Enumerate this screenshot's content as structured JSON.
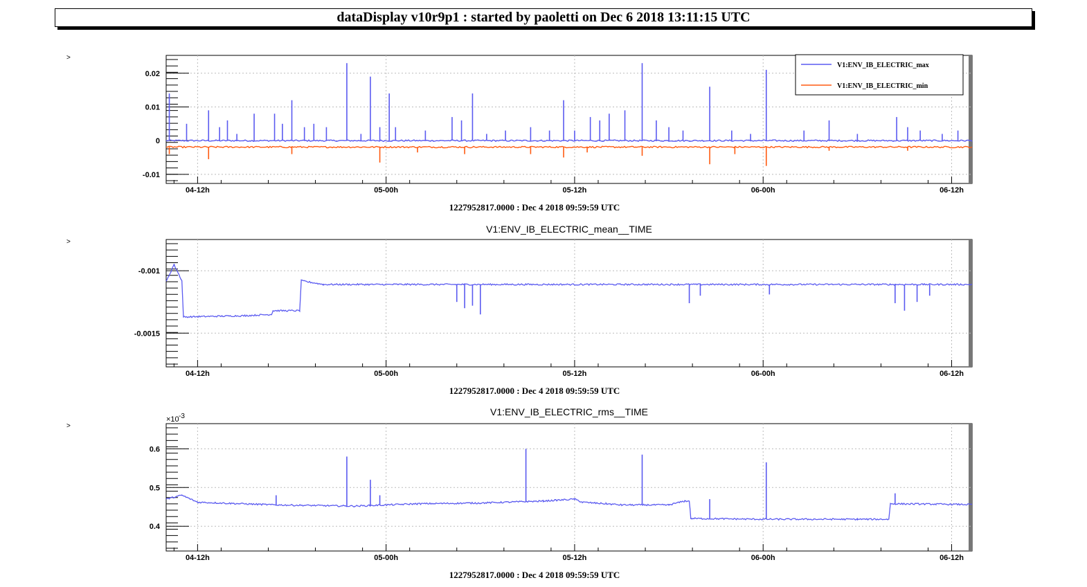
{
  "header": {
    "title": "dataDisplay v10r9p1 : started by paoletti on Dec  6 2018 13:11:15 UTC"
  },
  "colors": {
    "max": "#5a5af0",
    "min": "#ff5a10",
    "mean": "#5a5af0",
    "rms": "#5a5af0",
    "grid": "#bbbbbb"
  },
  "chart_data": [
    {
      "type": "line",
      "title": "",
      "corner_mark": ">",
      "x_time_label": "1227952817.0000 : Dec  4 2018 09:59:59 UTC",
      "x_ticks": [
        "04-12h",
        "05-00h",
        "05-12h",
        "06-00h",
        "06-12h"
      ],
      "x_hours": [
        0,
        12,
        24,
        36,
        48
      ],
      "xlim_hours": [
        -2,
        49.3
      ],
      "y_ticks": [
        0.02,
        0.01,
        0,
        -0.01
      ],
      "y_tick_labels": [
        "0.02",
        "0.01",
        "0",
        "-0.01"
      ],
      "ylim": [
        -0.0127,
        0.0253
      ],
      "grid": true,
      "legend_position": "top-right",
      "series": [
        {
          "name": "V1:ENV_IB_ELECTRIC_max",
          "color": "#5a5af0",
          "baseline": 0,
          "spikes": [
            [
              -1.8,
              0.014
            ],
            [
              -0.7,
              0.005
            ],
            [
              0.7,
              0.009
            ],
            [
              1.4,
              0.004
            ],
            [
              1.9,
              0.006
            ],
            [
              2.5,
              0.002
            ],
            [
              3.6,
              0.008
            ],
            [
              4.9,
              0.008
            ],
            [
              5.4,
              0.005
            ],
            [
              6.0,
              0.012
            ],
            [
              6.8,
              0.004
            ],
            [
              7.4,
              0.005
            ],
            [
              8.2,
              0.004
            ],
            [
              9.5,
              0.023
            ],
            [
              10.4,
              0.002
            ],
            [
              11.0,
              0.019
            ],
            [
              11.6,
              0.004
            ],
            [
              12.2,
              0.014
            ],
            [
              12.6,
              0.004
            ],
            [
              14.5,
              0.003
            ],
            [
              16.2,
              0.007
            ],
            [
              16.8,
              0.006
            ],
            [
              17.5,
              0.014
            ],
            [
              18.4,
              0.002
            ],
            [
              19.6,
              0.003
            ],
            [
              21.2,
              0.004
            ],
            [
              22.4,
              0.003
            ],
            [
              23.3,
              0.012
            ],
            [
              24.0,
              0.003
            ],
            [
              25.0,
              0.007
            ],
            [
              25.6,
              0.006
            ],
            [
              26.2,
              0.008
            ],
            [
              27.2,
              0.009
            ],
            [
              28.3,
              0.023
            ],
            [
              29.2,
              0.006
            ],
            [
              30.0,
              0.004
            ],
            [
              30.9,
              0.003
            ],
            [
              32.6,
              0.016
            ],
            [
              34.0,
              0.003
            ],
            [
              35.2,
              0.002
            ],
            [
              36.2,
              0.021
            ],
            [
              38.6,
              0.003
            ],
            [
              40.2,
              0.006
            ],
            [
              42.0,
              0.002
            ],
            [
              44.5,
              0.007
            ],
            [
              45.2,
              0.004
            ],
            [
              46.0,
              0.003
            ],
            [
              47.4,
              0.002
            ],
            [
              48.4,
              0.003
            ]
          ]
        },
        {
          "name": "V1:ENV_IB_ELECTRIC_min",
          "color": "#ff5a10",
          "baseline": -0.0019,
          "spikes": [
            [
              -1.8,
              -0.004
            ],
            [
              0.7,
              -0.0055
            ],
            [
              6.0,
              -0.004
            ],
            [
              11.6,
              -0.0065
            ],
            [
              14.0,
              -0.0035
            ],
            [
              17.0,
              -0.004
            ],
            [
              21.2,
              -0.004
            ],
            [
              23.3,
              -0.005
            ],
            [
              24.8,
              -0.0035
            ],
            [
              28.3,
              -0.0045
            ],
            [
              32.6,
              -0.007
            ],
            [
              34.2,
              -0.004
            ],
            [
              36.2,
              -0.0075
            ],
            [
              40.2,
              -0.003
            ],
            [
              45.2,
              -0.003
            ]
          ]
        }
      ]
    },
    {
      "type": "line",
      "title": "V1:ENV_IB_ELECTRIC_mean__TIME",
      "corner_mark": ">",
      "x_time_label": "1227952817.0000 : Dec  4 2018 09:59:59 UTC",
      "x_ticks": [
        "04-12h",
        "05-00h",
        "05-12h",
        "06-00h",
        "06-12h"
      ],
      "x_hours": [
        0,
        12,
        24,
        36,
        48
      ],
      "xlim_hours": [
        -2,
        49.3
      ],
      "y_ticks": [
        -0.001,
        -0.0015
      ],
      "y_tick_labels": [
        "-0.001",
        "-0.0015"
      ],
      "ylim": [
        -0.00177,
        -0.00075
      ],
      "grid": true,
      "series": [
        {
          "name": "",
          "color": "#5a5af0",
          "segments": [
            [
              -2.0,
              -0.00109
            ],
            [
              -1.5,
              -0.00095
            ],
            [
              -1.0,
              -0.00108
            ],
            [
              -0.9,
              -0.00137
            ],
            [
              3.0,
              -0.00136
            ],
            [
              4.7,
              -0.00135
            ],
            [
              4.8,
              -0.00132
            ],
            [
              6.5,
              -0.00132
            ],
            [
              6.6,
              -0.00108
            ],
            [
              8.0,
              -0.00111
            ],
            [
              49.3,
              -0.00111
            ]
          ],
          "dips": [
            [
              16.5,
              -0.00125
            ],
            [
              17.0,
              -0.0013
            ],
            [
              17.5,
              -0.00128
            ],
            [
              18.0,
              -0.00135
            ],
            [
              31.3,
              -0.00126
            ],
            [
              32.0,
              -0.0012
            ],
            [
              36.4,
              -0.00119
            ],
            [
              44.4,
              -0.00126
            ],
            [
              45.0,
              -0.00132
            ],
            [
              45.8,
              -0.00125
            ],
            [
              46.6,
              -0.0012
            ]
          ]
        }
      ]
    },
    {
      "type": "line",
      "title": "V1:ENV_IB_ELECTRIC_rms__TIME",
      "corner_mark": ">",
      "multiplier": "×10",
      "multiplier_exp": "-3",
      "x_time_label": "1227952817.0000 : Dec  4 2018 09:59:59 UTC",
      "x_ticks": [
        "04-12h",
        "05-00h",
        "05-12h",
        "06-00h",
        "06-12h"
      ],
      "x_hours": [
        0,
        12,
        24,
        36,
        48
      ],
      "xlim_hours": [
        -2,
        49.3
      ],
      "y_ticks": [
        0.6,
        0.5,
        0.4
      ],
      "y_tick_labels": [
        "0.6",
        "0.5",
        "0.4"
      ],
      "ylim": [
        0.336,
        0.665
      ],
      "grid": true,
      "series": [
        {
          "name": "",
          "color": "#5a5af0",
          "segments": [
            [
              -2.0,
              0.47
            ],
            [
              -1.0,
              0.48
            ],
            [
              0.0,
              0.462
            ],
            [
              5.0,
              0.455
            ],
            [
              10.0,
              0.452
            ],
            [
              14.0,
              0.458
            ],
            [
              18.0,
              0.46
            ],
            [
              22.0,
              0.465
            ],
            [
              24.0,
              0.47
            ],
            [
              24.5,
              0.462
            ],
            [
              26.0,
              0.458
            ],
            [
              27.0,
              0.455
            ],
            [
              30.0,
              0.455
            ],
            [
              31.0,
              0.465
            ],
            [
              31.3,
              0.465
            ],
            [
              31.4,
              0.42
            ],
            [
              36.0,
              0.418
            ],
            [
              42.0,
              0.418
            ],
            [
              44.0,
              0.418
            ],
            [
              44.1,
              0.458
            ],
            [
              47.0,
              0.457
            ],
            [
              49.3,
              0.456
            ]
          ],
          "spikes": [
            [
              9.5,
              0.58
            ],
            [
              11.0,
              0.52
            ],
            [
              11.6,
              0.48
            ],
            [
              20.9,
              0.6
            ],
            [
              28.3,
              0.585
            ],
            [
              32.6,
              0.47
            ],
            [
              36.2,
              0.565
            ],
            [
              44.4,
              0.485
            ],
            [
              5.0,
              0.48
            ]
          ]
        }
      ]
    }
  ]
}
